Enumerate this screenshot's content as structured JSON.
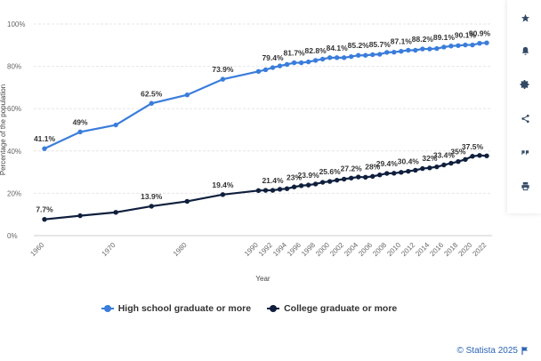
{
  "chart_data": {
    "type": "line",
    "title": "",
    "xlabel": "Year",
    "ylabel": "Percentage of the population",
    "ylim": [
      0,
      100
    ],
    "yticks": [
      0,
      20,
      40,
      60,
      80,
      100
    ],
    "ytick_labels": [
      "0%",
      "20%",
      "40%",
      "60%",
      "80%",
      "100%"
    ],
    "xticks": [
      1960,
      1970,
      1980,
      1990,
      1992,
      1994,
      1996,
      1998,
      2000,
      2002,
      2004,
      2006,
      2008,
      2010,
      2012,
      2014,
      2016,
      2018,
      2020,
      2022
    ],
    "xtick_labels": [
      "1960",
      "1970",
      "1980",
      "1990",
      "1992",
      "1994",
      "1996",
      "1998",
      "2000",
      "2002",
      "2004",
      "2006",
      "2008",
      "2010",
      "2012",
      "2014",
      "2016",
      "2018",
      "2020",
      "2022"
    ],
    "x": [
      "1960",
      "1965",
      "1970",
      "1975",
      "1980",
      "1985",
      "1990",
      "1991",
      "1992",
      "1993",
      "1994",
      "1995",
      "1996",
      "1997",
      "1998",
      "1999",
      "2000",
      "2001",
      "2002",
      "2003",
      "2004",
      "2005",
      "2006",
      "2007",
      "2008",
      "2009",
      "2010",
      "2011",
      "2012",
      "2013",
      "2014",
      "2015",
      "2016",
      "2017",
      "2018",
      "2019",
      "2020",
      "2021",
      "2022"
    ],
    "series": [
      {
        "name": "High school graduate or more",
        "color": "#3a7ddb",
        "values": [
          41.1,
          49.0,
          52.3,
          62.5,
          66.5,
          73.9,
          77.6,
          78.4,
          79.4,
          80.2,
          80.9,
          81.7,
          81.7,
          82.1,
          82.8,
          83.4,
          84.1,
          84.1,
          84.1,
          84.6,
          85.2,
          85.2,
          85.5,
          85.7,
          86.6,
          86.7,
          87.1,
          87.6,
          87.6,
          88.2,
          88.2,
          88.4,
          89.1,
          89.6,
          89.8,
          90.1,
          90.1,
          90.9,
          91.1
        ],
        "labels": [
          {
            "year": "1960",
            "text": "41.1%"
          },
          {
            "year": "1965",
            "text": "49%"
          },
          {
            "year": "1975",
            "text": "62.5%"
          },
          {
            "year": "1985",
            "text": "73.9%"
          },
          {
            "year": "1992",
            "text": "79.4%"
          },
          {
            "year": "1995",
            "text": "81.7%"
          },
          {
            "year": "1998",
            "text": "82.8%"
          },
          {
            "year": "2001",
            "text": "84.1%"
          },
          {
            "year": "2004",
            "text": "85.2%"
          },
          {
            "year": "2007",
            "text": "85.7%"
          },
          {
            "year": "2010",
            "text": "87.1%"
          },
          {
            "year": "2013",
            "text": "88.2%"
          },
          {
            "year": "2016",
            "text": "89.1%"
          },
          {
            "year": "2019",
            "text": "90.1%"
          },
          {
            "year": "2021",
            "text": "90.9%"
          }
        ]
      },
      {
        "name": "College graduate or more",
        "color": "#0f1f3d",
        "values": [
          7.7,
          9.4,
          11.0,
          13.9,
          16.2,
          19.4,
          21.3,
          21.4,
          21.4,
          21.9,
          22.2,
          23.0,
          23.6,
          23.9,
          24.4,
          25.2,
          25.6,
          26.2,
          26.7,
          27.2,
          27.7,
          27.6,
          28.0,
          28.7,
          29.4,
          29.5,
          29.9,
          30.4,
          30.9,
          31.7,
          32.0,
          32.5,
          33.4,
          34.2,
          35.0,
          36.0,
          37.5,
          37.9,
          37.7
        ],
        "labels": [
          {
            "year": "1960",
            "text": "7.7%"
          },
          {
            "year": "1975",
            "text": "13.9%"
          },
          {
            "year": "1985",
            "text": "19.4%"
          },
          {
            "year": "1992",
            "text": "21.4%"
          },
          {
            "year": "1995",
            "text": "23%"
          },
          {
            "year": "1997",
            "text": "23.9%"
          },
          {
            "year": "2000",
            "text": "25.6%"
          },
          {
            "year": "2003",
            "text": "27.2%"
          },
          {
            "year": "2006",
            "text": "28%"
          },
          {
            "year": "2008",
            "text": "29.4%"
          },
          {
            "year": "2011",
            "text": "30.4%"
          },
          {
            "year": "2014",
            "text": "32%"
          },
          {
            "year": "2016",
            "text": "33.4%"
          },
          {
            "year": "2018",
            "text": "35%"
          },
          {
            "year": "2020",
            "text": "37.5%"
          }
        ]
      }
    ],
    "grid": true,
    "legend_position": "bottom"
  },
  "credit": {
    "text": "© Statista 2025",
    "icon": "flag-icon"
  },
  "toolbar": {
    "buttons": [
      {
        "icon": "star-icon"
      },
      {
        "icon": "bell-icon"
      },
      {
        "icon": "gear-icon"
      },
      {
        "icon": "share-icon"
      },
      {
        "icon": "quote-icon"
      },
      {
        "icon": "print-icon"
      }
    ]
  }
}
